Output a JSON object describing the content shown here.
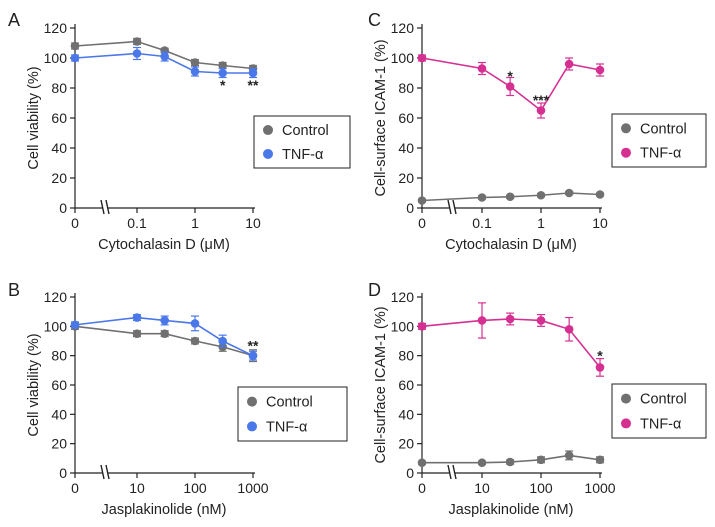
{
  "colors": {
    "control": "#707070",
    "tnf": "#4a78e8",
    "tnf_icam": "#d62f92",
    "axis": "#222222"
  },
  "chart_data": [
    {
      "panel": "A",
      "type": "line",
      "xlabel": "Cytochalasin D (μM)",
      "ylabel": "Cell viability (%)",
      "x_scale": "log with axis break at 0",
      "x": [
        0,
        0.1,
        0.3,
        1,
        3,
        10
      ],
      "x_ticks": [
        "0",
        "0.1",
        "1",
        "10"
      ],
      "y_ticks": [
        "0",
        "20",
        "40",
        "60",
        "80",
        "100",
        "120"
      ],
      "ylim": [
        0,
        120
      ],
      "legend": "right-middle",
      "series": [
        {
          "name": "Control",
          "values": [
            108,
            111,
            105,
            97,
            95,
            93
          ],
          "errors": [
            2,
            2,
            1.5,
            2,
            2,
            2
          ]
        },
        {
          "name": "TNF-α",
          "values": [
            100,
            103,
            101,
            91,
            90,
            90
          ],
          "errors": [
            2,
            4,
            3,
            3,
            3,
            3
          ]
        }
      ],
      "annotations": [
        {
          "x": 3,
          "y": 82,
          "text": "*"
        },
        {
          "x": 10,
          "y": 82,
          "text": "**"
        }
      ]
    },
    {
      "panel": "B",
      "type": "line",
      "xlabel": "Jasplakinolide (nM)",
      "ylabel": "Cell viability (%)",
      "x_scale": "log with axis break at 0",
      "x": [
        0,
        10,
        30,
        100,
        300,
        1000
      ],
      "x_ticks": [
        "0",
        "10",
        "100",
        "1000"
      ],
      "y_ticks": [
        "0",
        "20",
        "40",
        "60",
        "80",
        "100",
        "120"
      ],
      "ylim": [
        0,
        120
      ],
      "legend": "right-bottom",
      "series": [
        {
          "name": "Control",
          "values": [
            100,
            95,
            95,
            90,
            86,
            80
          ],
          "errors": [
            2,
            2,
            2,
            2,
            3,
            4
          ]
        },
        {
          "name": "TNF-α",
          "values": [
            101,
            106,
            104,
            102,
            90,
            80
          ],
          "errors": [
            2,
            2,
            3,
            5,
            4,
            3
          ]
        }
      ],
      "annotations": [
        {
          "x": 1000,
          "y": 87,
          "text": "**"
        }
      ]
    },
    {
      "panel": "C",
      "type": "line",
      "xlabel": "Cytochalasin D (μM)",
      "ylabel": "Cell-surface ICAM-1 (%)",
      "x_scale": "log with axis break at 0",
      "x": [
        0,
        0.1,
        0.3,
        1,
        3,
        10
      ],
      "x_ticks": [
        "0",
        "0.1",
        "1",
        "10"
      ],
      "y_ticks": [
        "0",
        "20",
        "40",
        "60",
        "80",
        "100",
        "120"
      ],
      "ylim": [
        0,
        120
      ],
      "legend": "right-bottom",
      "series": [
        {
          "name": "Control",
          "values": [
            5,
            7,
            7.5,
            8.5,
            10,
            9
          ],
          "errors": [
            1,
            1,
            1,
            1,
            1,
            1
          ]
        },
        {
          "name": "TNF-α",
          "values": [
            100,
            93,
            81,
            65,
            96,
            92
          ],
          "errors": [
            2,
            4,
            6,
            5,
            4,
            4
          ]
        }
      ],
      "annotations": [
        {
          "x": 0.3,
          "y": 88,
          "text": "*"
        },
        {
          "x": 1,
          "y": 72,
          "text": "***"
        }
      ]
    },
    {
      "panel": "D",
      "type": "line",
      "xlabel": "Jasplakinolide (nM)",
      "ylabel": "Cell-surface ICAM-1 (%)",
      "x_scale": "log with axis break at 0",
      "x": [
        0,
        10,
        30,
        100,
        300,
        1000
      ],
      "x_ticks": [
        "0",
        "10",
        "100",
        "1000"
      ],
      "y_ticks": [
        "0",
        "20",
        "40",
        "60",
        "80",
        "100",
        "120"
      ],
      "ylim": [
        0,
        120
      ],
      "legend": "right-bottom",
      "series": [
        {
          "name": "Control",
          "values": [
            7,
            7,
            7.5,
            9,
            12,
            9
          ],
          "errors": [
            1,
            1,
            1.5,
            2,
            3,
            2
          ]
        },
        {
          "name": "TNF-α",
          "values": [
            100,
            104,
            105,
            104,
            98,
            72
          ],
          "errors": [
            2,
            12,
            4,
            4,
            8,
            6
          ]
        }
      ],
      "annotations": [
        {
          "x": 1000,
          "y": 80,
          "text": "*"
        }
      ]
    }
  ]
}
